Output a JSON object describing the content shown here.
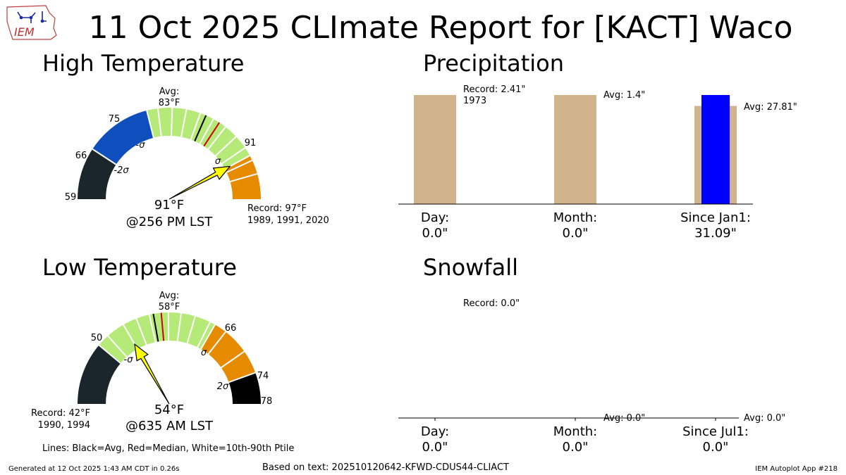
{
  "header": {
    "logo_text": "IEM",
    "title": "11 Oct 2025 CLImate Report for [KACT] Waco"
  },
  "chart_data": [
    {
      "type": "gauge",
      "panel": "high",
      "title": "High Temperature",
      "range": [
        59,
        97
      ],
      "threshold_labels": [
        "59",
        "66",
        "75",
        "91"
      ],
      "sigma_labels": [
        "-2σ",
        "-σ",
        "σ"
      ],
      "band_colors": [
        "#1b262c",
        "#0f4fbd",
        "#b6ea78",
        "#e68a00",
        "#c40000"
      ],
      "avg": 83,
      "median": 85,
      "avg_label": [
        "Avg:",
        "83°F"
      ],
      "ptile_lines": [
        76.5,
        78.4,
        80.3,
        82.2,
        84.1,
        86.0,
        87.9,
        89.8,
        91.7,
        93.6
      ],
      "value": 91,
      "value_label": "91°F",
      "time_label": "@256 PM LST",
      "record_label": [
        "Record: 97°F",
        "1989, 1991, 2020"
      ]
    },
    {
      "type": "gauge",
      "panel": "low",
      "title": "Low Temperature",
      "range": [
        42,
        78
      ],
      "threshold_labels": [
        "50",
        "66",
        "74",
        "78"
      ],
      "sigma_labels": [
        "-σ",
        "σ",
        "2σ"
      ],
      "band_colors": [
        "#1b262c",
        "#b6ea78",
        "#e68a00",
        "#c40000"
      ],
      "avg": 58,
      "median": 59,
      "avg_label": [
        "Avg:",
        "58°F"
      ],
      "ptile_lines": [
        51.6,
        54.0,
        55.8,
        57.5,
        59.9,
        61.5,
        63.3,
        65.3,
        67.6,
        71.0
      ],
      "value": 54,
      "value_label": "54°F",
      "time_label": "@635 AM LST",
      "record_label": [
        "Record: 42°F",
        "1990, 1994"
      ]
    },
    {
      "type": "bar",
      "panel": "precip",
      "title": "Precipitation",
      "categories": [
        "Day:",
        "Month:",
        "Since Jan1:"
      ],
      "value_labels": [
        "0.0\"",
        "0.0\"",
        "31.09\""
      ],
      "observed": [
        0.0,
        0.0,
        31.09
      ],
      "reference": [
        2.41,
        1.4,
        27.81
      ],
      "reference_units": "fraction of max",
      "reference_fill": [
        1.0,
        1.0,
        0.9
      ],
      "observed_fill": [
        0,
        0,
        1.0
      ],
      "annotations": [
        [
          "Record: 2.41\"",
          "1973"
        ],
        [
          "Avg: 1.4\""
        ],
        [
          "Avg: 27.81\""
        ]
      ],
      "colors": {
        "reference": "#d2b48c",
        "observed": "#0000ff"
      }
    },
    {
      "type": "bar",
      "panel": "snow",
      "title": "Snowfall",
      "categories": [
        "Day:",
        "Month:",
        "Since Jul1:"
      ],
      "value_labels": [
        "0.0\"",
        "0.0\"",
        "0.0\""
      ],
      "observed": [
        0.0,
        0.0,
        0.0
      ],
      "annotations": [
        [
          "Record: 0.0\""
        ],
        [
          "Avg: 0.0\""
        ],
        [
          "Avg: 0.0\""
        ]
      ]
    }
  ],
  "legend_note": "Lines: Black=Avg, Red=Median, White=10th-90th Ptile",
  "footer": {
    "generated": "Generated at 12 Oct 2025 1:43 AM CDT in 0.26s",
    "source": "Based on text: 202510120642-KFWD-CDUS44-CLIACT",
    "app": "IEM Autoplot App #218"
  }
}
